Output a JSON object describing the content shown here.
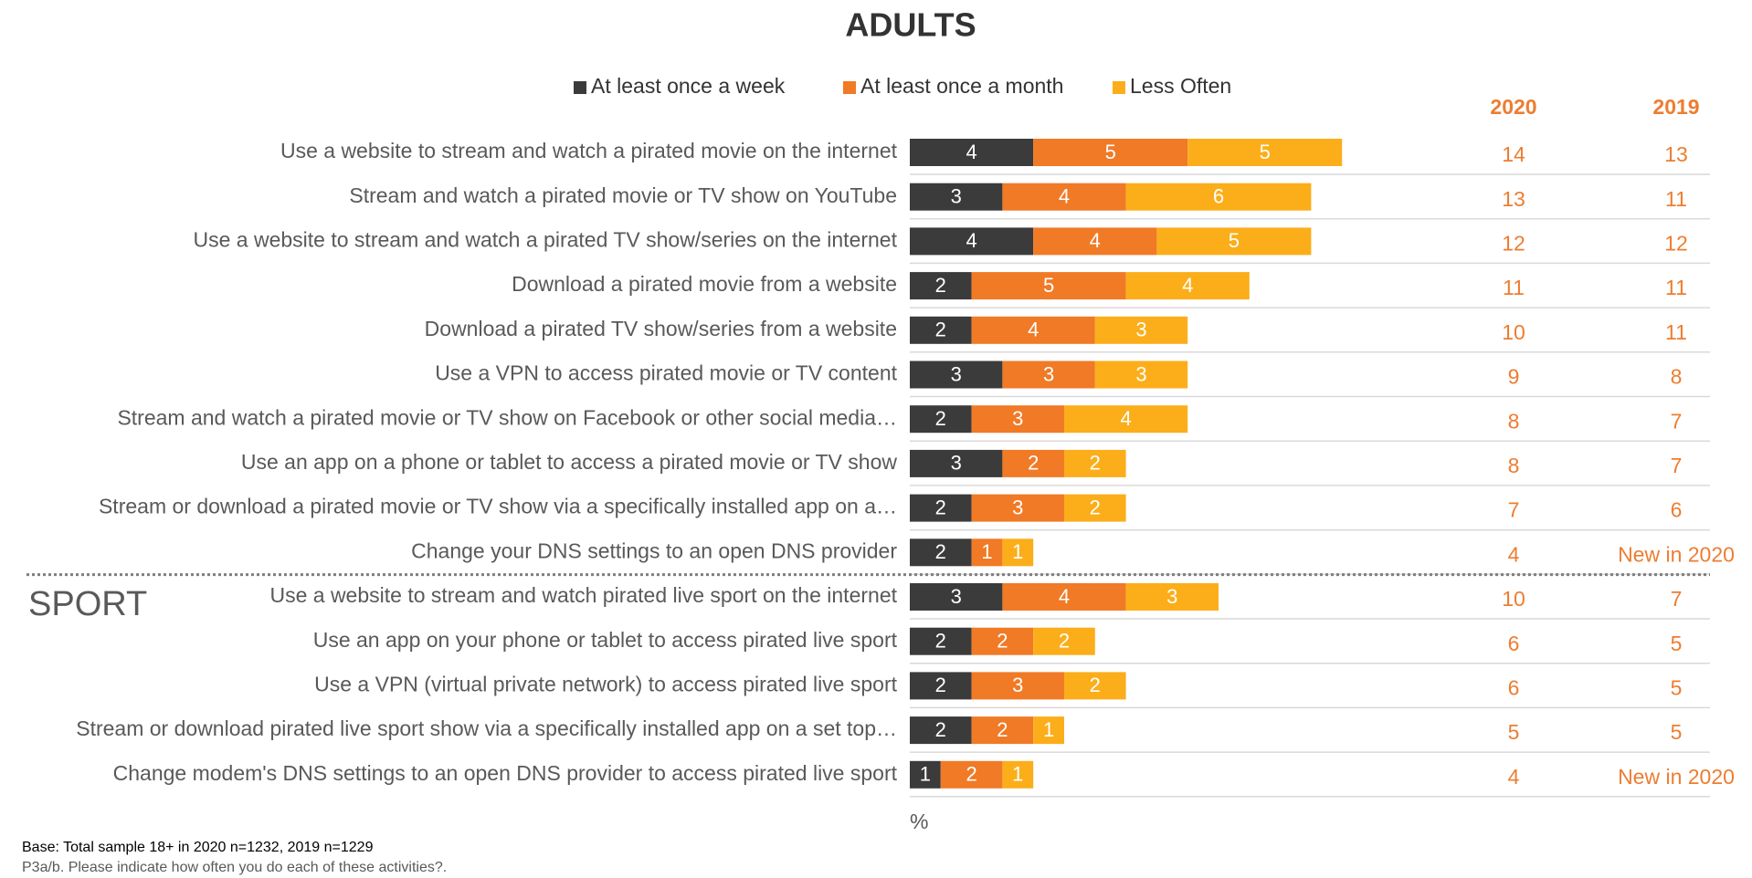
{
  "chart_data": {
    "type": "bar",
    "orientation": "horizontal",
    "stacked": true,
    "title": "ADULTS",
    "section_label": "SPORT",
    "categories": [
      "Use a website to stream and watch a pirated movie on the internet",
      "Stream and watch a pirated movie or TV show on YouTube",
      "Use a website to stream and watch a pirated TV show/series on the internet",
      "Download a pirated movie from a website",
      "Download a pirated TV show/series from a website",
      "Use a VPN to access pirated movie or TV content",
      "Stream and watch a pirated movie or TV show on Facebook or other social media…",
      "Use an app on a phone or tablet to access a pirated movie or TV show",
      "Stream or download a pirated movie or TV show via a specifically installed app on a…",
      "Change your DNS settings to an open DNS provider",
      "Use a website to stream and watch pirated live sport on the internet",
      "Use an app on your phone or tablet to access pirated live sport",
      "Use a VPN (virtual private network) to access pirated live sport",
      "Stream or download pirated live sport show via a specifically installed app on a set top…",
      "Change modem's DNS settings to an open DNS provider  to access pirated live sport"
    ],
    "series": [
      {
        "name": "At least once a week",
        "color": "#3b3b3b",
        "values": [
          4,
          3,
          4,
          2,
          2,
          3,
          2,
          3,
          2,
          2,
          3,
          2,
          2,
          2,
          1
        ]
      },
      {
        "name": "At least once a month",
        "color": "#f07a26",
        "values": [
          5,
          4,
          4,
          5,
          4,
          3,
          3,
          2,
          3,
          1,
          4,
          2,
          3,
          2,
          2
        ]
      },
      {
        "name": "Less Often",
        "color": "#fbae1a",
        "values": [
          5,
          6,
          5,
          4,
          3,
          3,
          4,
          2,
          2,
          1,
          3,
          2,
          2,
          1,
          1
        ]
      }
    ],
    "columns": [
      {
        "name": "2020",
        "values": [
          14,
          13,
          12,
          11,
          10,
          9,
          8,
          8,
          7,
          4,
          10,
          6,
          6,
          5,
          4
        ]
      },
      {
        "name": "2019",
        "values": [
          13,
          11,
          12,
          11,
          11,
          8,
          7,
          7,
          6,
          "New in 2020",
          7,
          5,
          5,
          5,
          "New in 2020"
        ]
      }
    ],
    "xlabel": "%",
    "notes": [
      "Base: Total sample 18+ in 2020 n=1232, 2019 n=1229",
      "P3a/b. Please indicate how often you do each of these activities?."
    ]
  }
}
